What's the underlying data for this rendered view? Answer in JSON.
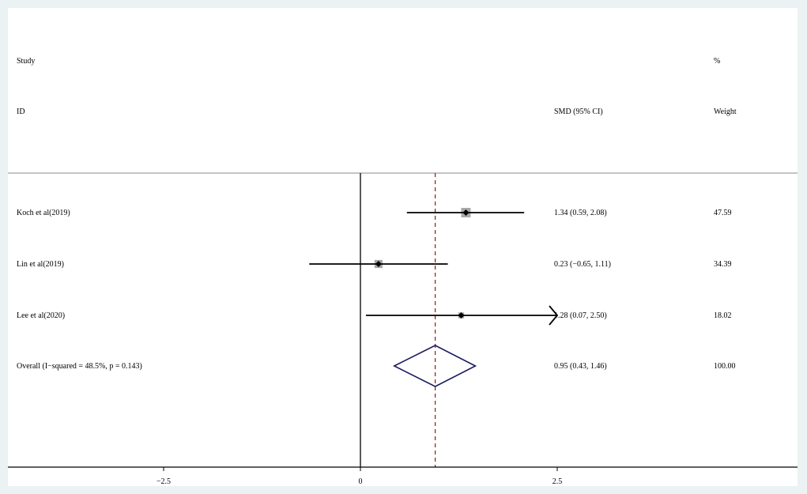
{
  "chart_data": {
    "type": "forest",
    "header": {
      "col_study_line1": "Study",
      "col_study_line2": "ID",
      "col_effect": "SMD (95% CI)",
      "col_weight_line1": "%",
      "col_weight_line2": "Weight"
    },
    "studies": [
      {
        "label": "Koch et al(2019)",
        "estimate": 1.34,
        "ci_low": 0.59,
        "ci_high": 2.08,
        "weight": 47.59,
        "effect_text": "1.34 (0.59, 2.08)",
        "weight_text": "47.59"
      },
      {
        "label": "Lin et al(2019)",
        "estimate": 0.23,
        "ci_low": -0.65,
        "ci_high": 1.11,
        "weight": 34.39,
        "effect_text": "0.23 (−0.65, 1.11)",
        "weight_text": "34.39"
      },
      {
        "label": "Lee et al(2020)",
        "estimate": 1.28,
        "ci_low": 0.07,
        "ci_high": 2.5,
        "weight": 18.02,
        "effect_text": "1.28 (0.07, 2.50)",
        "weight_text": "18.02",
        "arrow_right": true
      }
    ],
    "overall": {
      "label": "Overall  (I−squared = 48.5%, p = 0.143)",
      "estimate": 0.95,
      "ci_low": 0.43,
      "ci_high": 1.46,
      "effect_text": "0.95 (0.43, 1.46)",
      "weight_text": "100.00"
    },
    "x_ticks": [
      {
        "value": -2.5,
        "label": "−2.5"
      },
      {
        "value": 0,
        "label": "0"
      },
      {
        "value": 2.5,
        "label": "2.5"
      }
    ],
    "null_line": 0,
    "colors": {
      "background": "#eaf2f3",
      "panel": "#ffffff",
      "ci_line": "#000000",
      "weight_box": "#a8a8a8",
      "overall_line": "#8b1a1a",
      "diamond": "#1a1a5e"
    }
  }
}
